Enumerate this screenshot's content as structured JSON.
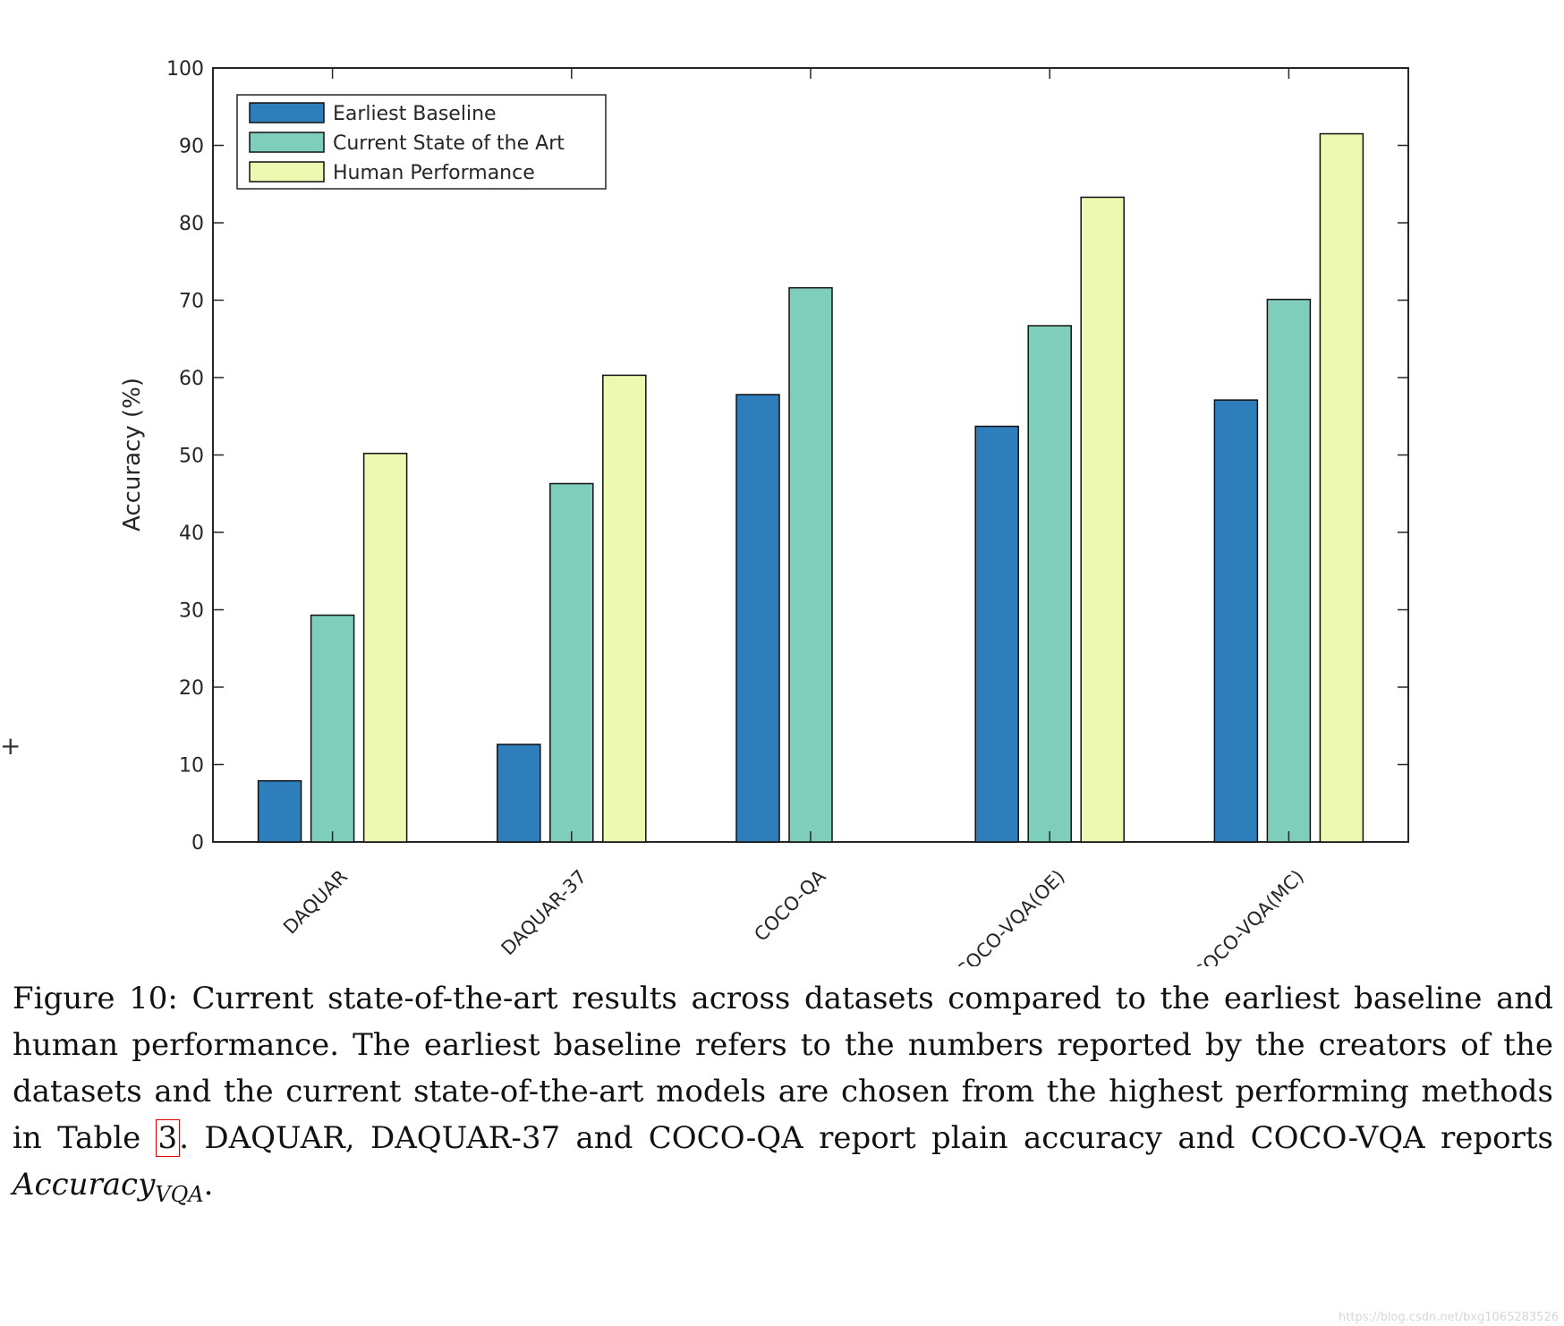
{
  "chart_data": {
    "type": "bar",
    "ylabel": "Accuracy (%)",
    "ylim": [
      0,
      100
    ],
    "yticks": [
      "0",
      "10",
      "20",
      "30",
      "40",
      "50",
      "60",
      "70",
      "80",
      "90",
      "100"
    ],
    "categories": [
      "DAQUAR",
      "DAQUAR-37",
      "COCO-QA",
      "COCO-VQA(OE)",
      "COCO-VQA(MC)"
    ],
    "series": [
      {
        "name": "Earliest Baseline",
        "color": "#2e7ebc",
        "values": [
          7.9,
          12.6,
          57.8,
          53.7,
          57.1
        ]
      },
      {
        "name": "Current State of the Art",
        "color": "#7fcdbb",
        "values": [
          29.3,
          46.3,
          71.6,
          66.7,
          70.1
        ]
      },
      {
        "name": "Human Performance",
        "color": "#edf8b1",
        "values": [
          50.2,
          60.3,
          null,
          83.3,
          91.5
        ]
      }
    ],
    "legend_position": "top-left"
  },
  "caption": {
    "label": "Figure 10:",
    "text_1": " Current state-of-the-art results across datasets compared to the earliest baseline and human performance. The earliest baseline refers to the numbers reported by the creators of the datasets and the current state-of-the-art models are chosen from the highest performing methods in Table ",
    "table_ref": "3",
    "text_2": ". DAQUAR, DAQUAR-37 and COCO-QA report plain accuracy and COCO-VQA reports ",
    "math_main": "Accuracy",
    "math_sub": "VQA",
    "text_3": "."
  },
  "margin_mark": "+",
  "watermark": "https://blog.csdn.net/bxg1065283526"
}
